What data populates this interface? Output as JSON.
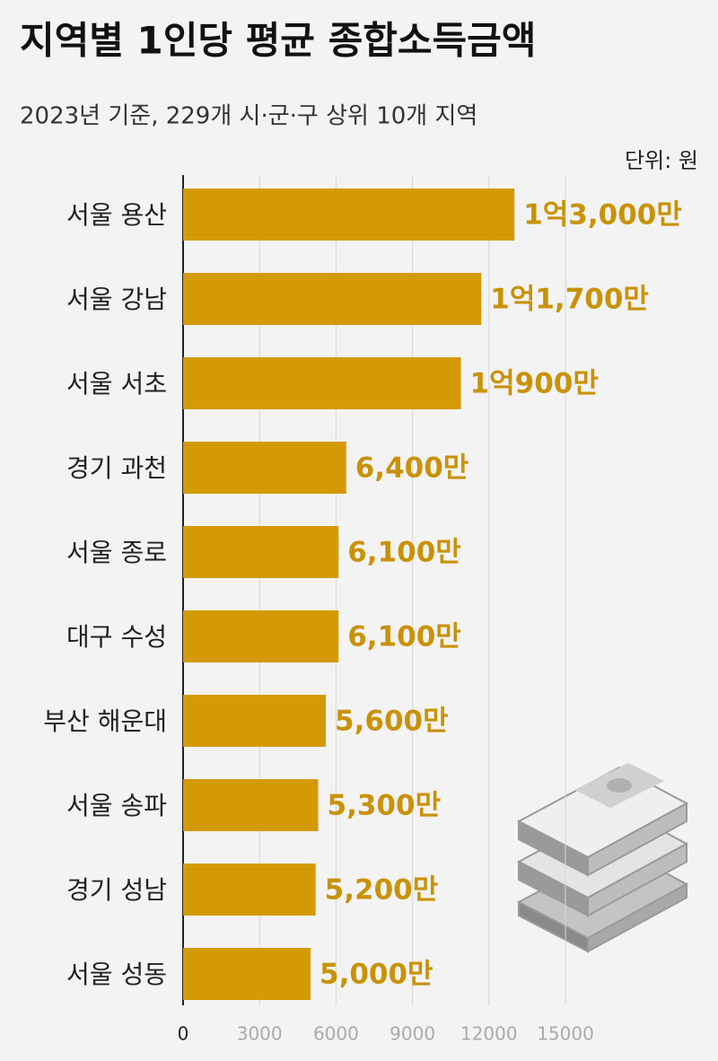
{
  "chart_data": {
    "type": "hbar",
    "title": "지역별 1인당 평균 종합소득금액",
    "subtitle": "2023년 기준, 229개 시·군·구 상위 10개 지역",
    "unit_label": "단위: 원",
    "categories": [
      "서울 용산",
      "서울 강남",
      "서울 서초",
      "경기 과천",
      "서울 종로",
      "대구 수성",
      "부산 해운대",
      "서울 송파",
      "경기 성남",
      "서울 성동"
    ],
    "values": [
      13000,
      11700,
      10900,
      6400,
      6100,
      6100,
      5600,
      5300,
      5200,
      5000
    ],
    "value_labels": [
      "1억3,000만",
      "1억1,700만",
      "1억900만",
      "6,400만",
      "6,100만",
      "6,100만",
      "5,600만",
      "5,300만",
      "5,200만",
      "5,000만"
    ],
    "color": "#d49a06",
    "xlim": [
      0,
      15000
    ],
    "xticks": [
      0,
      3000,
      6000,
      9000,
      12000,
      15000
    ],
    "grid": true
  }
}
